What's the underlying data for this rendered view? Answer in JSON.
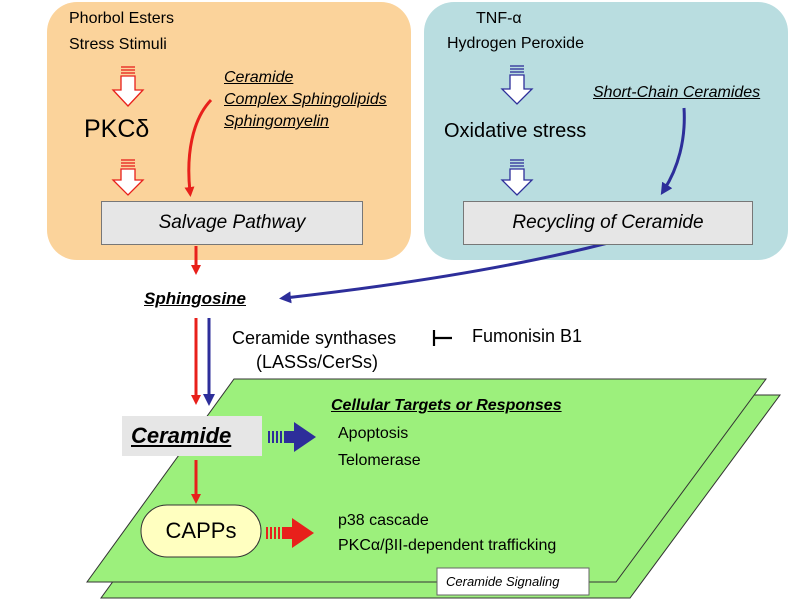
{
  "left_panel": {
    "inducers": [
      "Phorbol Esters",
      "Stress Stimuli"
    ],
    "kinase": "PKCδ",
    "lipids": [
      "Ceramide",
      "Complex Sphingolipids",
      "Sphingomyelin"
    ],
    "pathway": "Salvage Pathway"
  },
  "right_panel": {
    "inducers": [
      "TNF-α",
      "Hydrogen Peroxide"
    ],
    "stress": "Oxidative stress",
    "lipids": "Short-Chain Ceramides",
    "pathway": "Recycling of Ceramide"
  },
  "center": {
    "sphingosine": "Sphingosine",
    "synthases": [
      "Ceramide synthases",
      "(LASSs/CerSs)"
    ],
    "inhibitor": "Fumonisin B1",
    "ceramide": "Ceramide",
    "capps": "CAPPs"
  },
  "signaling": {
    "heading": "Cellular Targets or Responses",
    "responses_ceramide": [
      "Apoptosis",
      "Telomerase"
    ],
    "responses_capps": [
      "p38 cascade",
      "PKCα/βII-dependent trafficking"
    ],
    "tag": "Ceramide Signaling"
  },
  "colors": {
    "left_panel_fill": "#fbd39b",
    "right_panel_fill": "#b9dde0",
    "sheet_green": "#9cf07c",
    "red_arrow": "#e8201b",
    "blue_arrow": "#2d2e9a",
    "capps_fill": "#ffffc0"
  }
}
